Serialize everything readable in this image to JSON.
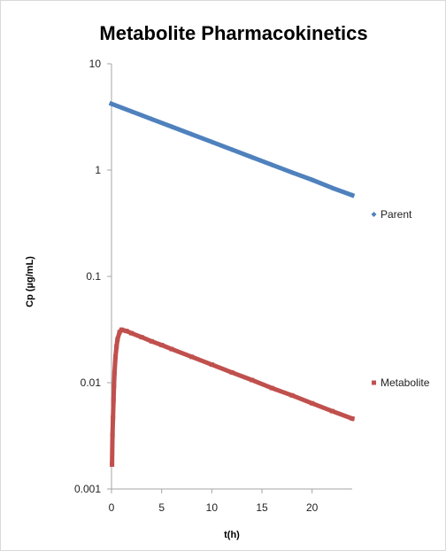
{
  "chart_data": {
    "type": "scatter",
    "title": "Metabolite Pharmacokinetics",
    "xlabel": "t(h)",
    "ylabel": "Cp (µg/mL)",
    "xlim": [
      0,
      24
    ],
    "ylim": [
      0.001,
      10
    ],
    "y_scale": "log",
    "grid": false,
    "legend_position": "right",
    "x_ticks": [
      "0",
      "5",
      "10",
      "15",
      "20"
    ],
    "y_ticks": [
      "0.001",
      "0.01",
      "0.1",
      "1",
      "10"
    ],
    "series": [
      {
        "name": "Parent",
        "color": "#4F81BD",
        "marker": "diamond",
        "x": [
          0,
          2,
          4,
          6,
          8,
          10,
          12,
          14,
          16,
          18,
          20,
          22,
          24
        ],
        "y": [
          4.2,
          3.56,
          3.02,
          2.56,
          2.17,
          1.84,
          1.56,
          1.32,
          1.12,
          0.95,
          0.81,
          0.68,
          0.58
        ]
      },
      {
        "name": "Metabolite",
        "color": "#C0504D",
        "marker": "square",
        "x": [
          0.05,
          0.1,
          0.15,
          0.2,
          0.25,
          0.3,
          0.4,
          0.5,
          0.6,
          0.8,
          1,
          1.5,
          2,
          3,
          4,
          5,
          6,
          8,
          10,
          12,
          14,
          16,
          18,
          20,
          22,
          24
        ],
        "y": [
          0.0017,
          0.0032,
          0.0047,
          0.0069,
          0.0093,
          0.0124,
          0.0175,
          0.0219,
          0.0256,
          0.0299,
          0.0315,
          0.0306,
          0.0292,
          0.0268,
          0.0245,
          0.0226,
          0.0207,
          0.0175,
          0.0148,
          0.0125,
          0.0106,
          0.0089,
          0.0076,
          0.0064,
          0.0054,
          0.0046
        ]
      }
    ]
  }
}
